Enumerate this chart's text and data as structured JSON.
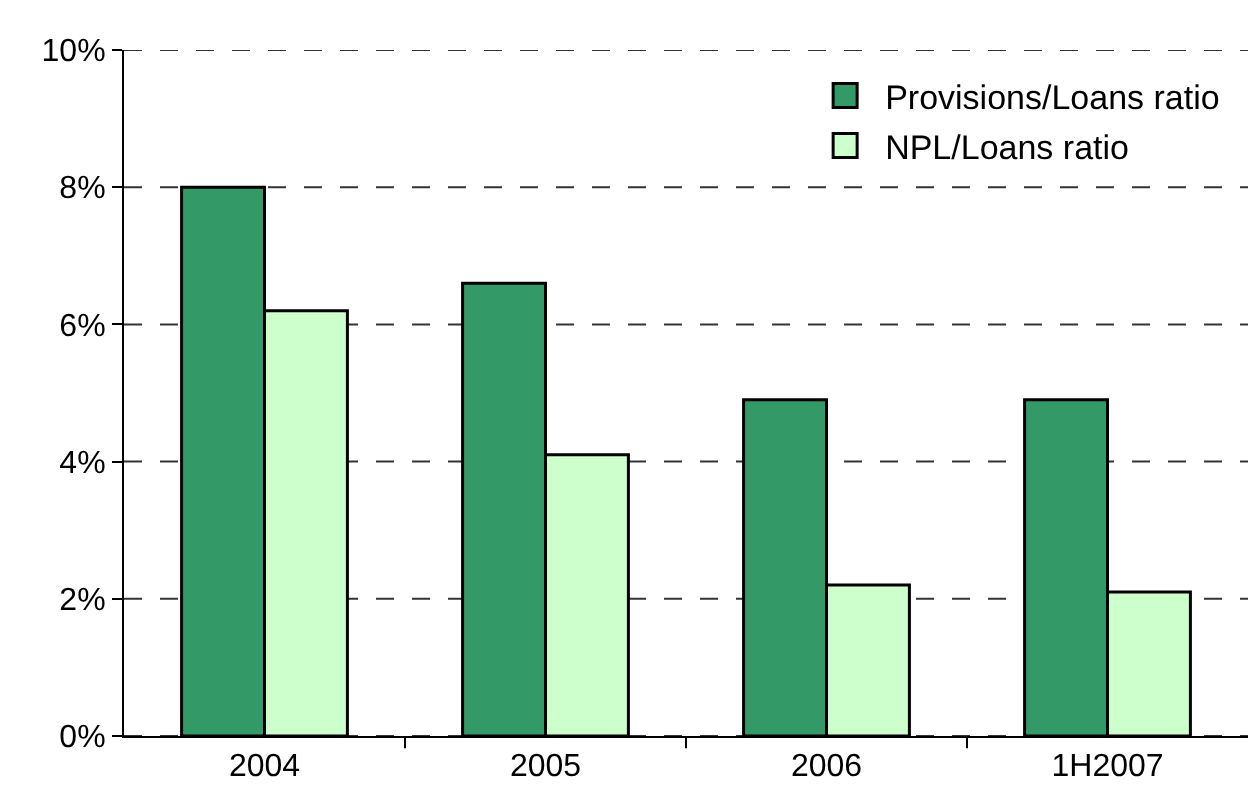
{
  "chart_data": {
    "type": "bar",
    "categories": [
      "2004",
      "2005",
      "2006",
      "1H2007"
    ],
    "series": [
      {
        "name": "Provisions/Loans ratio",
        "color": "#339966",
        "values": [
          8.0,
          6.6,
          4.9,
          4.9
        ]
      },
      {
        "name": "NPL/Loans ratio",
        "color": "#ccffcc",
        "values": [
          6.2,
          4.1,
          2.2,
          2.1
        ]
      }
    ],
    "ylim": [
      0,
      10
    ],
    "yticks": [
      {
        "value": 0,
        "label": "0%"
      },
      {
        "value": 2,
        "label": "2%"
      },
      {
        "value": 4,
        "label": "4%"
      },
      {
        "value": 6,
        "label": "6%"
      },
      {
        "value": 8,
        "label": "8%"
      },
      {
        "value": 10,
        "label": "10%"
      }
    ],
    "grid": "y",
    "legend": "top right"
  }
}
